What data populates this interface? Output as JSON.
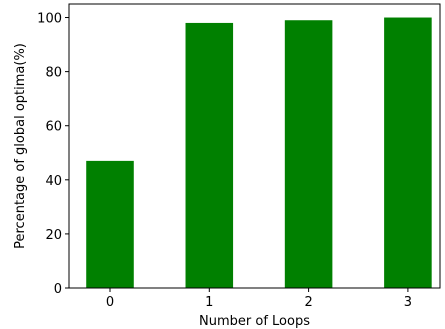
{
  "chart_data": {
    "type": "bar",
    "categories": [
      "0",
      "1",
      "2",
      "3"
    ],
    "values": [
      47,
      98,
      99,
      100
    ],
    "title": "",
    "xlabel": "Number of Loops",
    "ylabel": "Percentage of global optima(%)",
    "ylim": [
      0,
      105
    ],
    "yticks": [
      0,
      20,
      40,
      60,
      80,
      100
    ],
    "grid": false,
    "bar_color": "#008000"
  }
}
